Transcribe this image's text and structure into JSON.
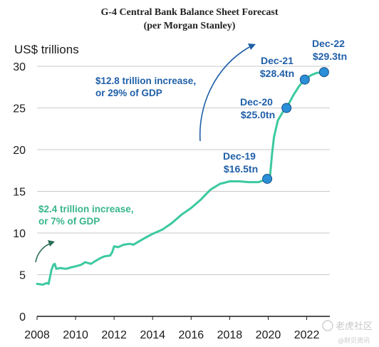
{
  "chart_data": {
    "type": "line",
    "title": "G-4 Central Bank Balance Sheet Forecast",
    "subtitle": "(per Morgan Stanley)",
    "ylabel": "US$ trillions",
    "xlabel": "",
    "xlim": [
      2008,
      2023.2
    ],
    "ylim": [
      0,
      30
    ],
    "yticks": [
      0,
      5,
      10,
      15,
      20,
      25,
      30
    ],
    "xticks": [
      2008,
      2010,
      2012,
      2014,
      2016,
      2018,
      2020,
      2022
    ],
    "grid": true,
    "line_color": "#3cc9a0",
    "marker_color": "#2a8fd6",
    "series": [
      {
        "points": [
          [
            2008.0,
            3.9
          ],
          [
            2008.3,
            3.8
          ],
          [
            2008.5,
            4.0
          ],
          [
            2008.6,
            3.9
          ],
          [
            2008.75,
            5.6
          ],
          [
            2008.85,
            6.2
          ],
          [
            2008.92,
            6.3
          ],
          [
            2009.0,
            5.7
          ],
          [
            2009.2,
            5.8
          ],
          [
            2009.5,
            5.7
          ],
          [
            2009.8,
            5.9
          ],
          [
            2010.0,
            6.0
          ],
          [
            2010.3,
            6.2
          ],
          [
            2010.5,
            6.5
          ],
          [
            2010.8,
            6.3
          ],
          [
            2011.0,
            6.6
          ],
          [
            2011.3,
            7.0
          ],
          [
            2011.5,
            7.2
          ],
          [
            2011.8,
            7.3
          ],
          [
            2011.9,
            7.7
          ],
          [
            2012.0,
            8.4
          ],
          [
            2012.2,
            8.3
          ],
          [
            2012.5,
            8.6
          ],
          [
            2012.8,
            8.7
          ],
          [
            2013.0,
            8.6
          ],
          [
            2013.3,
            9.0
          ],
          [
            2013.6,
            9.4
          ],
          [
            2014.0,
            9.9
          ],
          [
            2014.5,
            10.4
          ],
          [
            2015.0,
            11.2
          ],
          [
            2015.5,
            12.2
          ],
          [
            2016.0,
            13.0
          ],
          [
            2016.5,
            14.0
          ],
          [
            2017.0,
            15.2
          ],
          [
            2017.5,
            15.9
          ],
          [
            2018.0,
            16.2
          ],
          [
            2018.5,
            16.2
          ],
          [
            2019.0,
            16.1
          ],
          [
            2019.5,
            16.1
          ],
          [
            2019.95,
            16.5
          ],
          [
            2020.1,
            17.0
          ],
          [
            2020.2,
            19.5
          ],
          [
            2020.3,
            21.5
          ],
          [
            2020.5,
            23.5
          ],
          [
            2020.75,
            24.5
          ],
          [
            2020.95,
            25.0
          ],
          [
            2021.3,
            26.5
          ],
          [
            2021.6,
            27.6
          ],
          [
            2021.9,
            28.4
          ],
          [
            2022.2,
            28.9
          ],
          [
            2022.5,
            29.2
          ],
          [
            2022.9,
            29.3
          ]
        ]
      }
    ],
    "highlights": [
      {
        "label": "Dec-19",
        "value_label": "$16.5tn",
        "x": 2019.95,
        "y": 16.5
      },
      {
        "label": "Dec-20",
        "value_label": "$25.0tn",
        "x": 2020.95,
        "y": 25.0
      },
      {
        "label": "Dec-21",
        "value_label": "$28.4tn",
        "x": 2021.9,
        "y": 28.4
      },
      {
        "label": "Dec-22",
        "value_label": "$29.3tn",
        "x": 2022.9,
        "y": 29.3
      }
    ],
    "annotations": [
      {
        "line1": "$12.8 trillion increase,",
        "line2": "or 29% of GDP",
        "color": "blue"
      },
      {
        "line1": "$2.4 trillion increase,",
        "line2": "or 7% of GDP",
        "color": "green"
      }
    ]
  },
  "watermark": {
    "main": "老虎社区",
    "sub": "@财贝资讯"
  }
}
